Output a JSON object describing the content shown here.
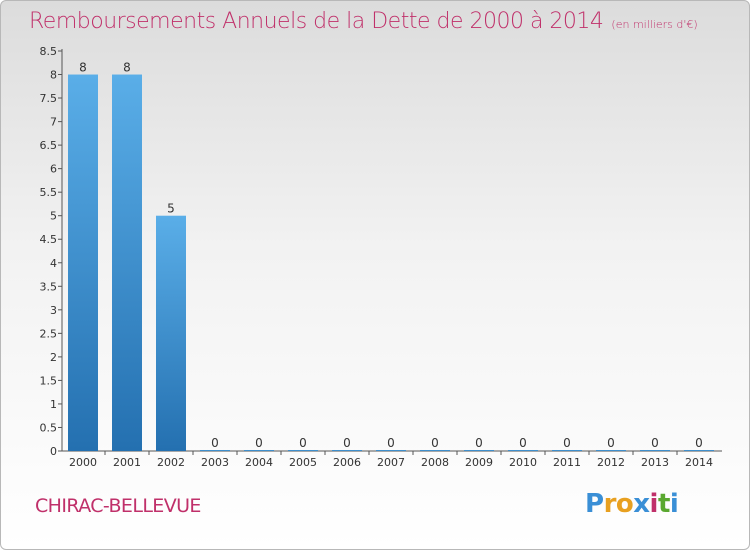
{
  "title": {
    "main": "Remboursements Annuels de la Dette de 2000 à 2014",
    "unit": "(en milliers d'€)"
  },
  "place": "CHIRAC-BELLEVUE",
  "logo": {
    "text": "Proxiti",
    "letter_colors": [
      "#3a8fd6",
      "#e8a020",
      "#e8a020",
      "#3a8fd6",
      "#c0306a",
      "#5aa830",
      "#3a8fd6"
    ]
  },
  "colors": {
    "title": "#c0306a",
    "bar_top": "#5aaee8",
    "bar_bottom": "#2470b0"
  },
  "chart_data": {
    "type": "bar",
    "categories": [
      "2000",
      "2001",
      "2002",
      "2003",
      "2004",
      "2005",
      "2006",
      "2007",
      "2008",
      "2009",
      "2010",
      "2011",
      "2012",
      "2013",
      "2014"
    ],
    "values": [
      8,
      8,
      5,
      0,
      0,
      0,
      0,
      0,
      0,
      0,
      0,
      0,
      0,
      0,
      0
    ],
    "data_labels": [
      "8",
      "8",
      "5",
      "0",
      "0",
      "0",
      "0",
      "0",
      "0",
      "0",
      "0",
      "0",
      "0",
      "0",
      "0"
    ],
    "y_ticks": [
      "0",
      "0.5",
      "1",
      "1.5",
      "2",
      "2.5",
      "3",
      "3.5",
      "4",
      "4.5",
      "5",
      "5.5",
      "6",
      "6.5",
      "7",
      "7.5",
      "8",
      "8.5"
    ],
    "ylim": [
      0,
      8.5
    ],
    "grid": false,
    "legend": "none"
  }
}
